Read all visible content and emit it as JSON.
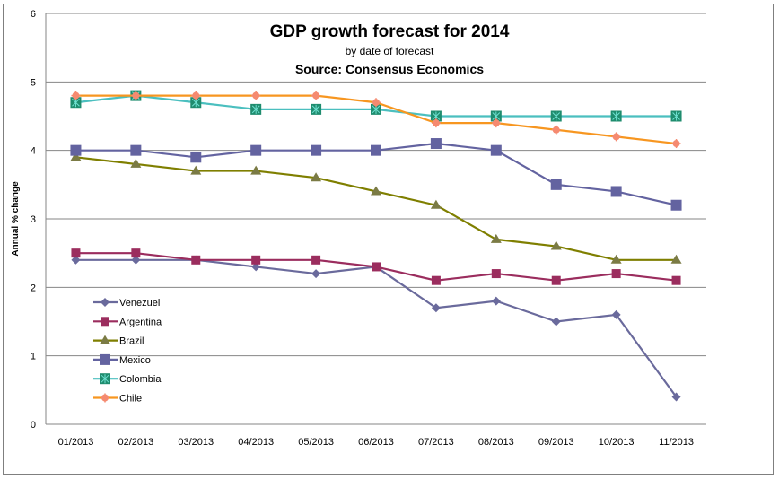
{
  "chart_data": {
    "type": "line",
    "title": "GDP growth forecast for 2014",
    "subtitle": "by date of forecast",
    "source": "Source: Consensus Economics",
    "xlabel": "",
    "ylabel": "Annual % change",
    "ylim": [
      0,
      6
    ],
    "yticks": [
      "0",
      "1",
      "2",
      "3",
      "4",
      "5",
      "6"
    ],
    "grid": true,
    "legend_position": "bottom-left-inside",
    "categories": [
      "01/2013",
      "02/2013",
      "03/2013",
      "04/2013",
      "05/2013",
      "06/2013",
      "07/2013",
      "08/2013",
      "09/2013",
      "10/2013",
      "11/2013"
    ],
    "series": [
      {
        "name": "Venezuel",
        "color": "#6a6a9c",
        "marker": "diamond",
        "values": [
          2.4,
          2.4,
          2.4,
          2.3,
          2.2,
          2.3,
          1.7,
          1.8,
          1.5,
          1.6,
          0.4
        ]
      },
      {
        "name": "Argentina",
        "color": "#9b2d5e",
        "marker": "square",
        "values": [
          2.5,
          2.5,
          2.4,
          2.4,
          2.4,
          2.3,
          2.1,
          2.2,
          2.1,
          2.2,
          2.1
        ]
      },
      {
        "name": "Brazil",
        "color": "#7f7f00",
        "marker": "triangle",
        "values": [
          3.9,
          3.8,
          3.7,
          3.7,
          3.6,
          3.4,
          3.2,
          2.7,
          2.6,
          2.4,
          2.4
        ]
      },
      {
        "name": "Mexico",
        "color": "#6363a0",
        "marker": "big-square",
        "values": [
          4.0,
          4.0,
          3.9,
          4.0,
          4.0,
          4.0,
          4.1,
          4.0,
          3.5,
          3.4,
          3.2
        ]
      },
      {
        "name": "Colombia",
        "color": "#4bbfbf",
        "marker": "star-square",
        "values": [
          4.7,
          4.8,
          4.7,
          4.6,
          4.6,
          4.6,
          4.5,
          4.5,
          4.5,
          4.5,
          4.5
        ]
      },
      {
        "name": "Chile",
        "color": "#f79620",
        "marker": "circle",
        "values": [
          4.8,
          4.8,
          4.8,
          4.8,
          4.8,
          4.7,
          4.4,
          4.4,
          4.3,
          4.2,
          4.1
        ]
      }
    ]
  }
}
